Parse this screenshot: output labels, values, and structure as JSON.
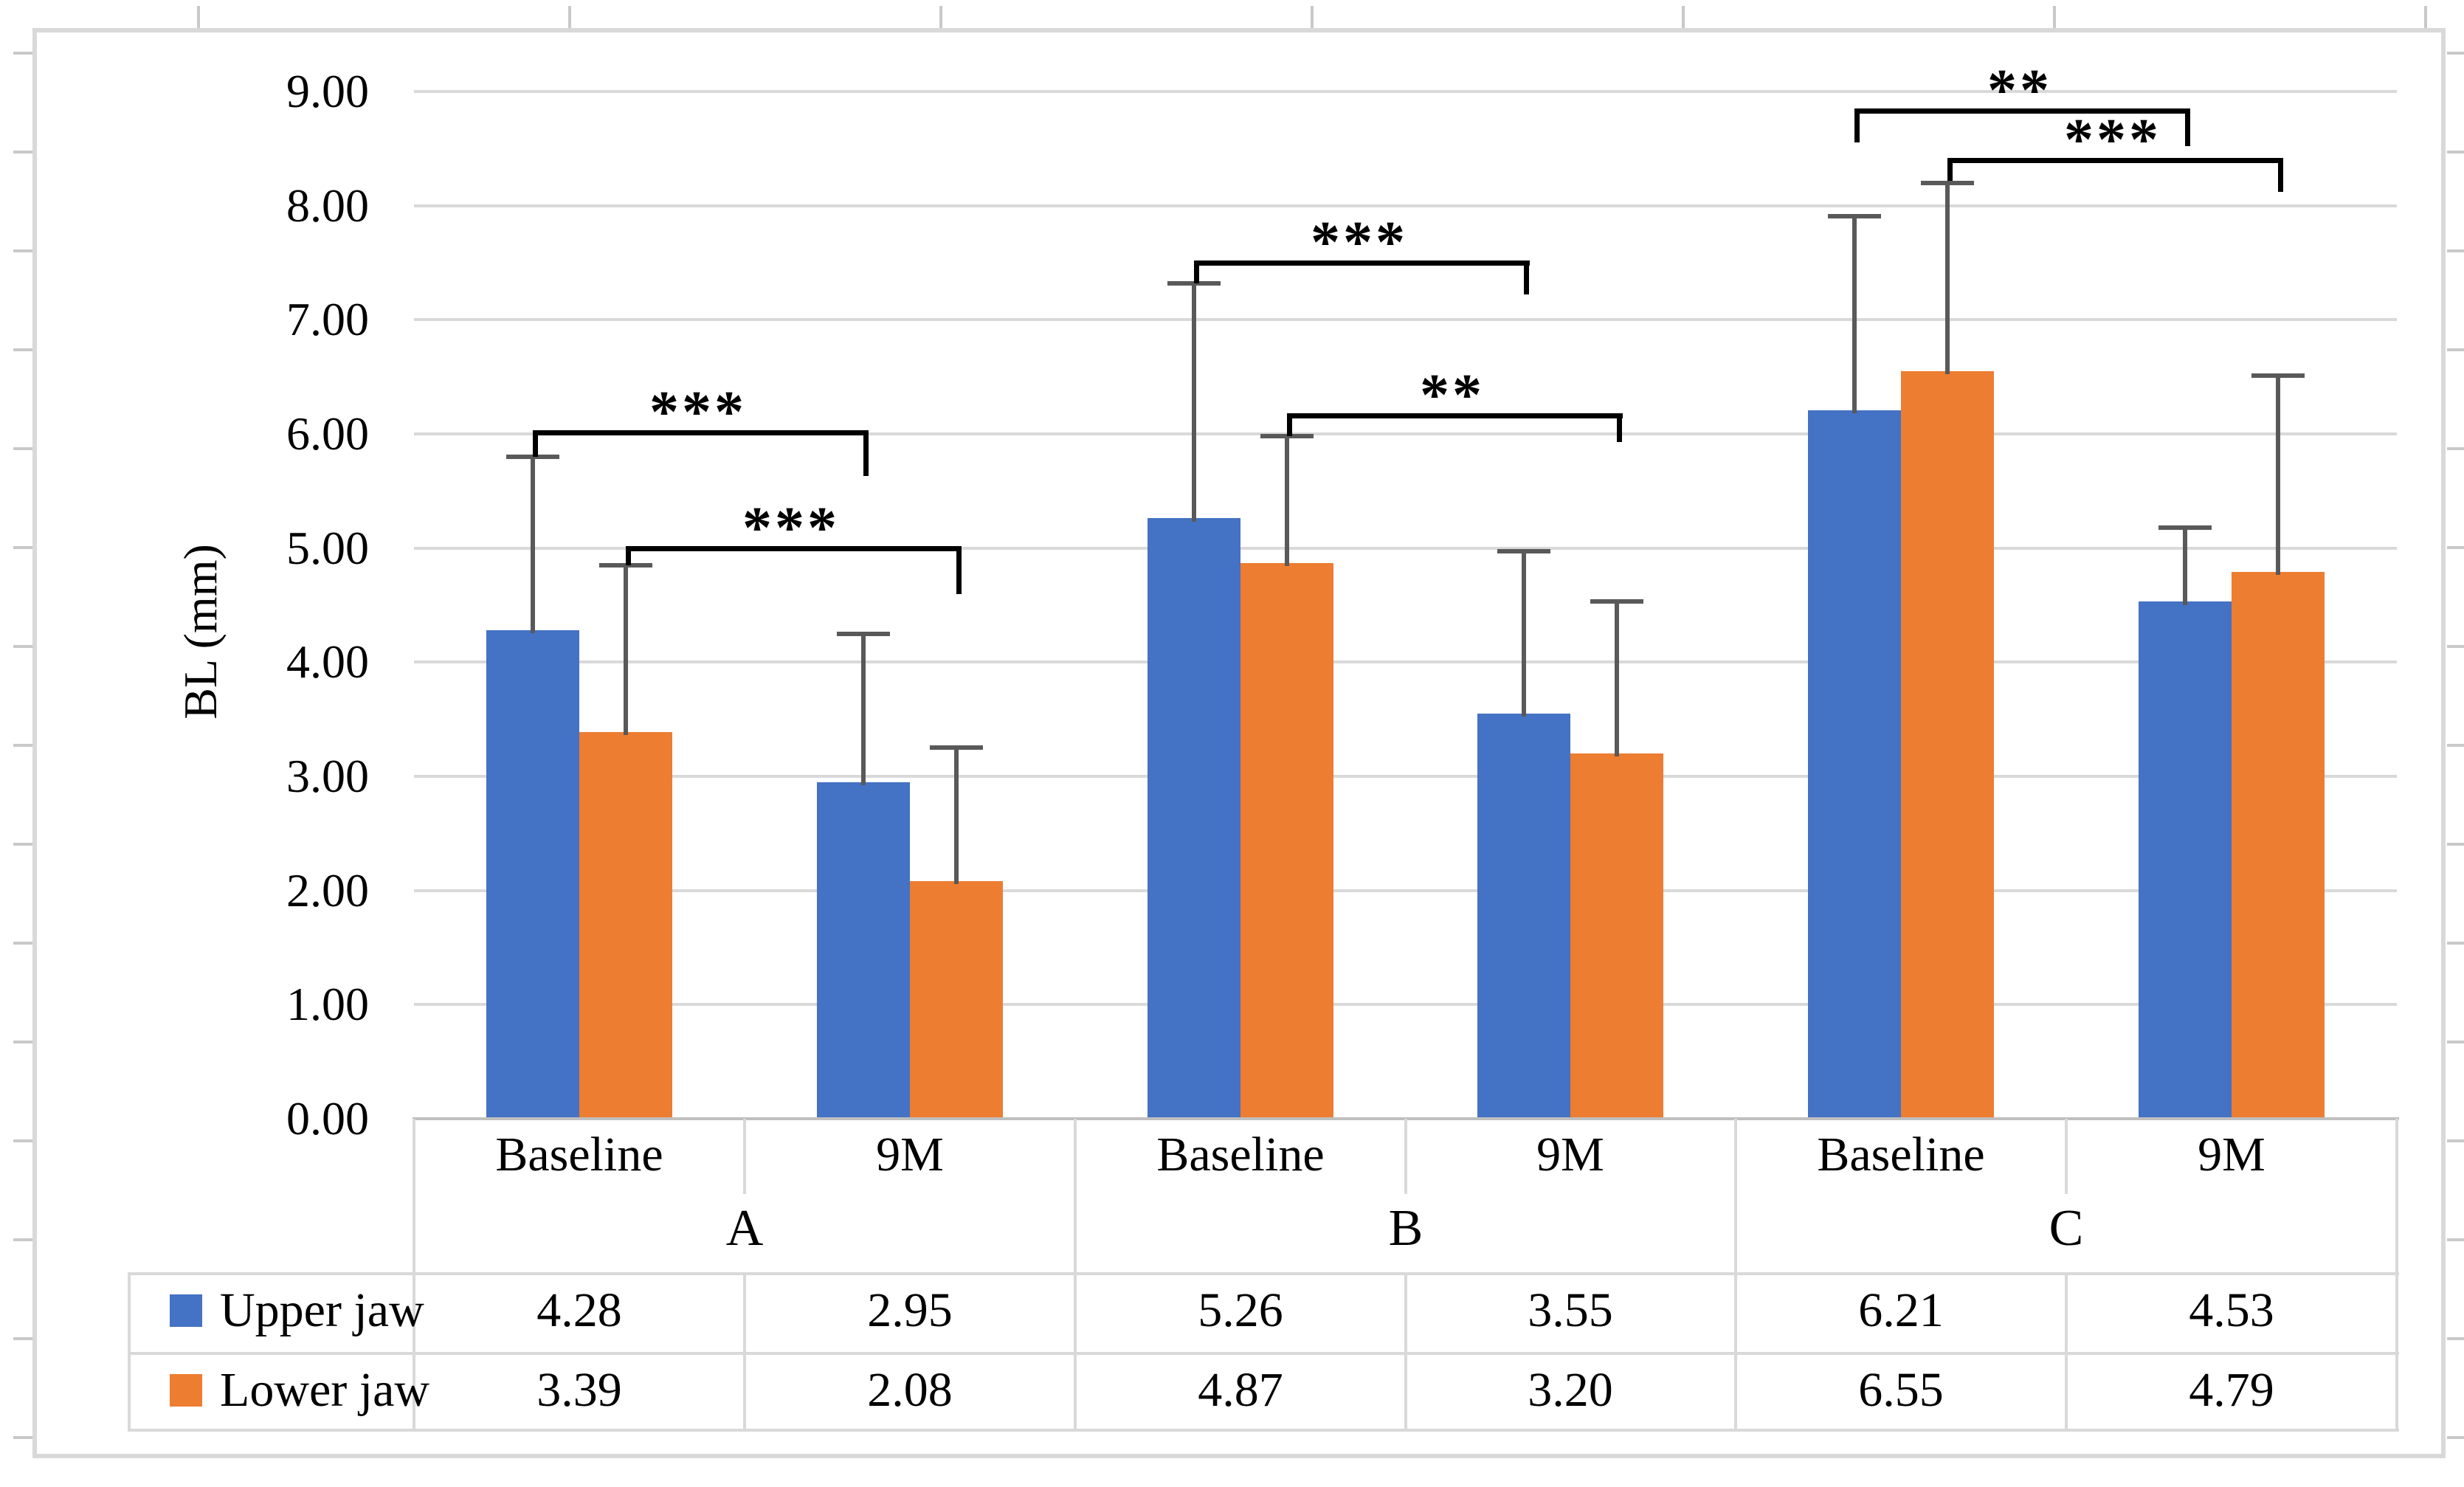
{
  "figure": {
    "background": "#ffffff",
    "frame_color": "#d9d9d9",
    "tick_mark_color": "#c9c9c9"
  },
  "chart_data": {
    "type": "bar",
    "title": "",
    "ylabel": "BL (mm)",
    "xlabel": "",
    "ylim": [
      0,
      9
    ],
    "ytick_step": 1.0,
    "ytick_labels": [
      "0.00",
      "1.00",
      "2.00",
      "3.00",
      "4.00",
      "5.00",
      "6.00",
      "7.00",
      "8.00",
      "9.00"
    ],
    "grid": true,
    "legend_position": "left-of-data-table",
    "groups": [
      "A",
      "B",
      "C"
    ],
    "timepoints": [
      "Baseline",
      "9M"
    ],
    "slots": [
      "A Baseline",
      "A 9M",
      "B Baseline",
      "B 9M",
      "C Baseline",
      "C 9M"
    ],
    "series": [
      {
        "name": "Upper jaw",
        "color": "#4472C4",
        "values": [
          4.28,
          2.95,
          5.26,
          3.55,
          6.21,
          4.53
        ],
        "errors_plus": [
          1.52,
          1.3,
          2.06,
          1.42,
          1.7,
          0.65
        ]
      },
      {
        "name": "Lower jaw",
        "color": "#ED7D31",
        "values": [
          3.39,
          2.08,
          4.87,
          3.2,
          6.55,
          4.79
        ],
        "errors_plus": [
          1.46,
          1.17,
          1.11,
          1.33,
          1.65,
          1.72
        ]
      }
    ],
    "error_bar_color": "#595959",
    "significance": [
      {
        "group": "A",
        "series_index": 0,
        "from_slot": 0,
        "to_slot": 1,
        "label": "***",
        "bar_y": 6.03,
        "left_drop_to": 5.8,
        "right_drop_to": 5.63
      },
      {
        "group": "A",
        "series_index": 1,
        "from_slot": 0,
        "to_slot": 1,
        "label": "***",
        "bar_y": 5.02,
        "left_drop_to": 4.85,
        "right_drop_to": 4.6
      },
      {
        "group": "B",
        "series_index": 0,
        "from_slot": 2,
        "to_slot": 3,
        "label": "***",
        "bar_y": 7.52,
        "left_drop_to": 7.32,
        "right_drop_to": 7.22
      },
      {
        "group": "B",
        "series_index": 1,
        "from_slot": 2,
        "to_slot": 3,
        "label": "**",
        "bar_y": 6.18,
        "left_drop_to": 5.98,
        "right_drop_to": 5.93
      },
      {
        "group": "C",
        "series_index": 0,
        "from_slot": 4,
        "to_slot": 5,
        "label": "**",
        "bar_y": 8.85,
        "left_drop_to": 8.55,
        "right_drop_to": 8.52
      },
      {
        "group": "C",
        "series_index": 1,
        "from_slot": 4,
        "to_slot": 5,
        "label": "***",
        "bar_y": 8.42,
        "left_drop_to": 8.22,
        "right_drop_to": 8.12
      }
    ],
    "table": {
      "column_headers": [
        "Baseline",
        "9M",
        "Baseline",
        "9M",
        "Baseline",
        "9M"
      ],
      "group_headers": [
        "A",
        "B",
        "C"
      ],
      "rows": [
        {
          "label": "Upper jaw",
          "key_color": "#4472C4",
          "values": [
            "4.28",
            "2.95",
            "5.26",
            "3.55",
            "6.21",
            "4.53"
          ]
        },
        {
          "label": "Lower jaw",
          "key_color": "#ED7D31",
          "values": [
            "3.39",
            "2.08",
            "4.87",
            "3.20",
            "6.55",
            "4.79"
          ]
        }
      ]
    },
    "colors": {
      "gridline": "#d9d9d9",
      "axis_line": "#bfbfbf",
      "table_border": "#d9d9d9",
      "bracket": "#000000",
      "text": "#000000"
    }
  }
}
